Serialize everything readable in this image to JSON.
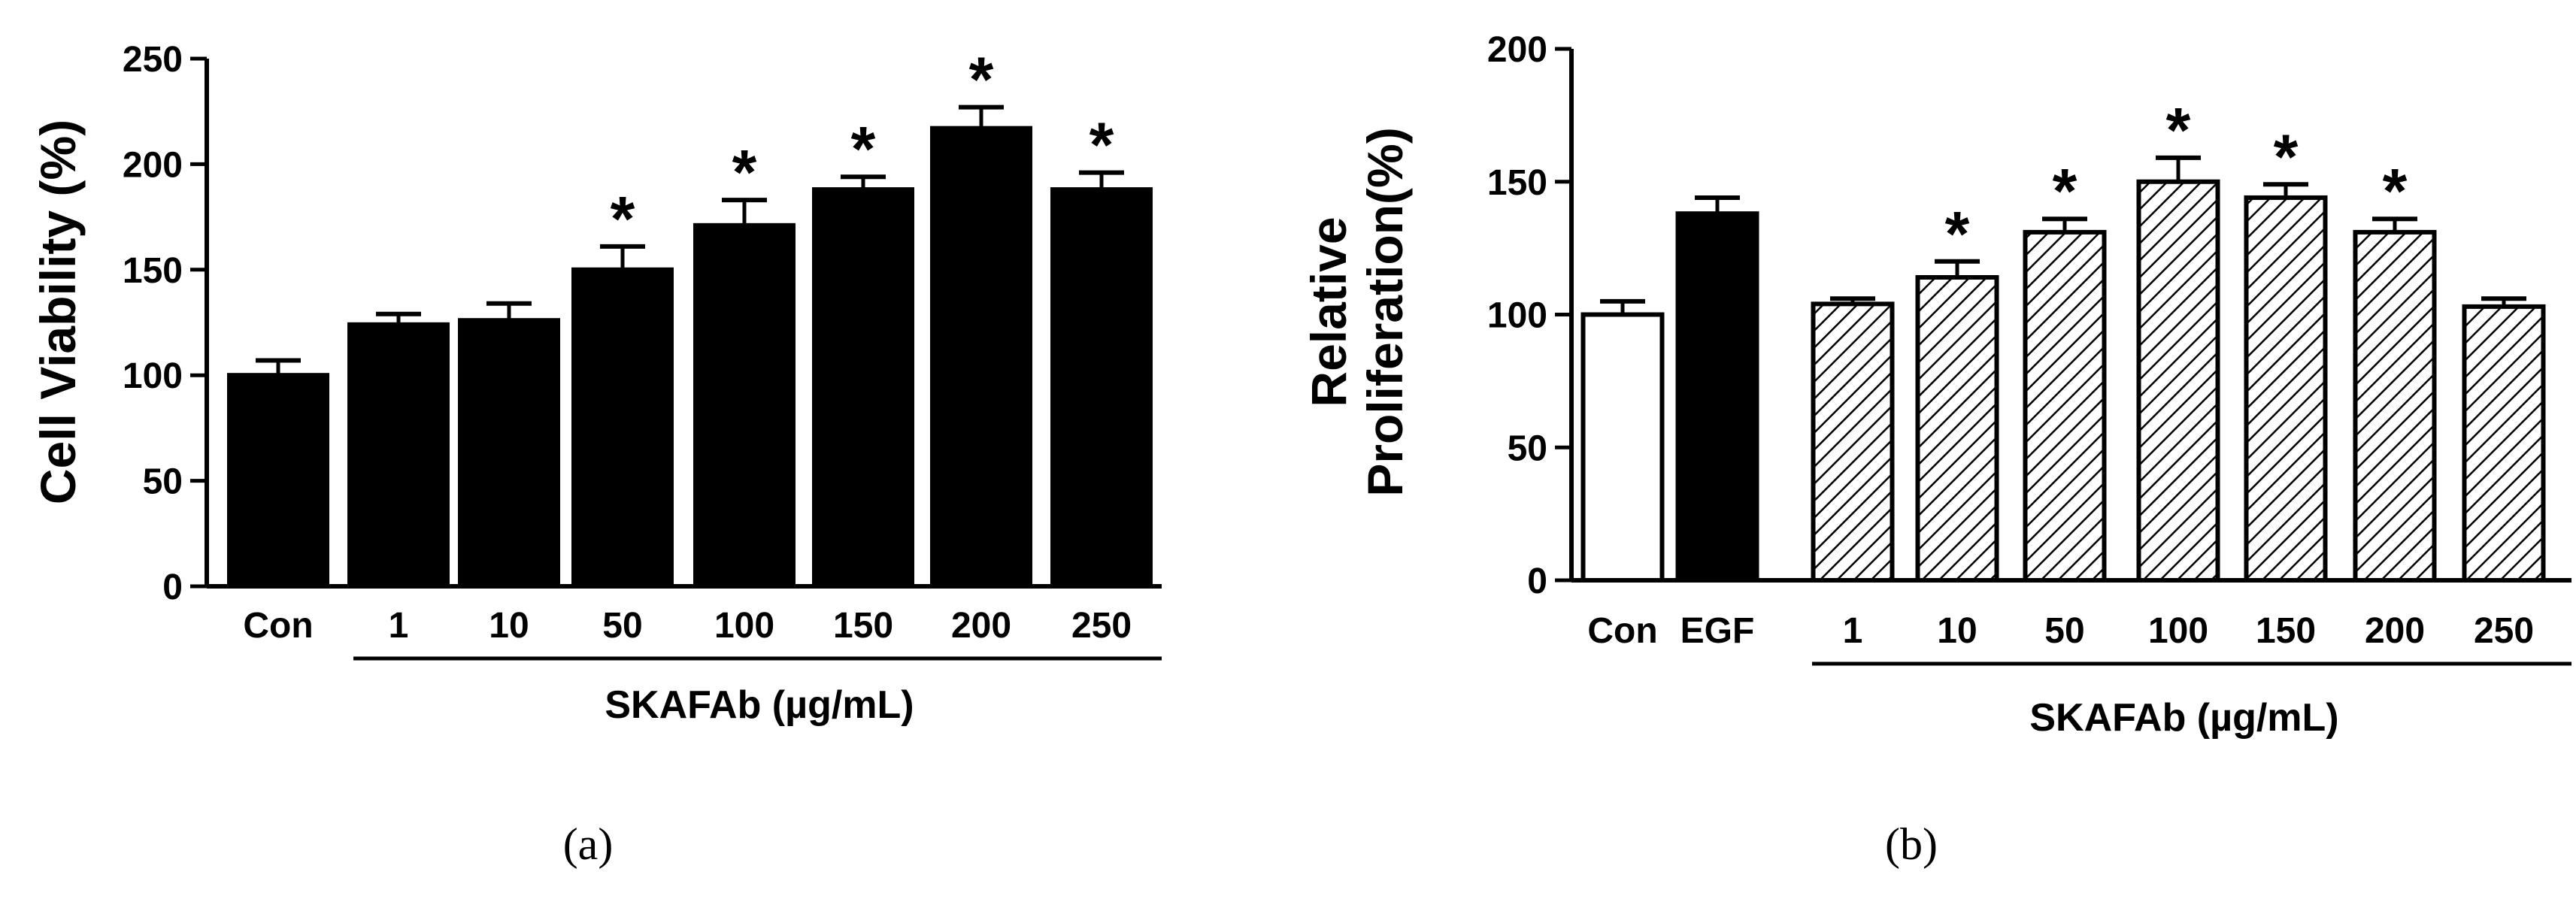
{
  "chart_data": [
    {
      "type": "bar",
      "panel_label": "(a)",
      "ylabel": "Cell Viability (%)",
      "xlabel": "",
      "group_label": "SKAFAb  (µg/mL)",
      "categories": [
        "Con",
        "1",
        "10",
        "50",
        "100",
        "150",
        "200",
        "250"
      ],
      "values": [
        100,
        124,
        126,
        150,
        171,
        188,
        217,
        188
      ],
      "errors": [
        7,
        5,
        8,
        11,
        12,
        6,
        10,
        8
      ],
      "significant": [
        false,
        false,
        false,
        true,
        true,
        true,
        true,
        true
      ],
      "fills": [
        "solid",
        "solid",
        "solid",
        "solid",
        "solid",
        "solid",
        "solid",
        "solid"
      ],
      "group_start_index": 1,
      "ylim": [
        0,
        250
      ],
      "yticks": [
        0,
        50,
        100,
        150,
        200,
        250
      ],
      "grid": false
    },
    {
      "type": "bar",
      "panel_label": "(b)",
      "ylabel_lines": [
        "Relative",
        "Proliferation(%)"
      ],
      "xlabel": "",
      "group_label": "SKAFAb (µg/mL)",
      "categories": [
        "Con",
        "EGF",
        "1",
        "10",
        "50",
        "100",
        "150",
        "200",
        "250"
      ],
      "values": [
        100,
        138,
        104,
        114,
        131,
        150,
        144,
        131,
        103
      ],
      "errors": [
        5,
        6,
        2,
        6,
        5,
        9,
        5,
        5,
        3
      ],
      "significant": [
        false,
        false,
        false,
        true,
        true,
        true,
        true,
        true,
        false
      ],
      "fills": [
        "white",
        "solid",
        "hatch",
        "hatch",
        "hatch",
        "hatch",
        "hatch",
        "hatch",
        "hatch"
      ],
      "group_start_index": 2,
      "ylim": [
        0,
        200
      ],
      "yticks": [
        0,
        50,
        100,
        150,
        200
      ],
      "grid": false
    }
  ],
  "star_symbol": "*"
}
